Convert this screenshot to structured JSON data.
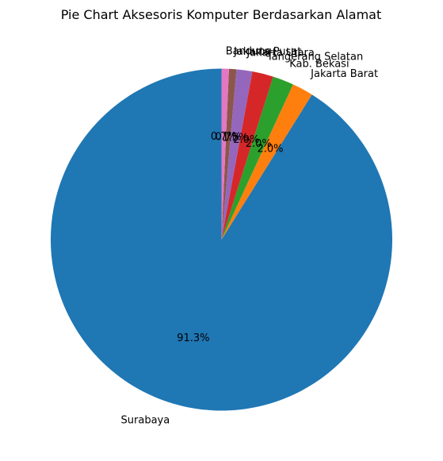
{
  "chart_data": {
    "type": "pie",
    "title": "Pie Chart Aksesoris Komputer Berdasarkan Alamat",
    "start_angle": 90,
    "direction": "counterclockwise",
    "legend": "none",
    "slices": [
      {
        "label": "Surabaya",
        "value": 91.3,
        "pct_label": "91.3%",
        "color": "#1f77b4"
      },
      {
        "label": "Jakarta Barat",
        "value": 2.0,
        "pct_label": "2.0%",
        "color": "#ff7f0e"
      },
      {
        "label": "Kab. Bekasi",
        "value": 2.0,
        "pct_label": "2.0%",
        "color": "#2ca02c"
      },
      {
        "label": "Tangerang Selatan",
        "value": 2.0,
        "pct_label": "2.0%",
        "color": "#d62728"
      },
      {
        "label": "Jakarta Utara",
        "value": 1.5,
        "pct_label": "1.5%",
        "color": "#9467bd"
      },
      {
        "label": "Jakarta Pusat",
        "value": 0.7,
        "pct_label": "0.7%",
        "color": "#8c564b"
      },
      {
        "label": "Bandung",
        "value": 0.7,
        "pct_label": "0.7%",
        "color": "#e377c2"
      }
    ]
  }
}
